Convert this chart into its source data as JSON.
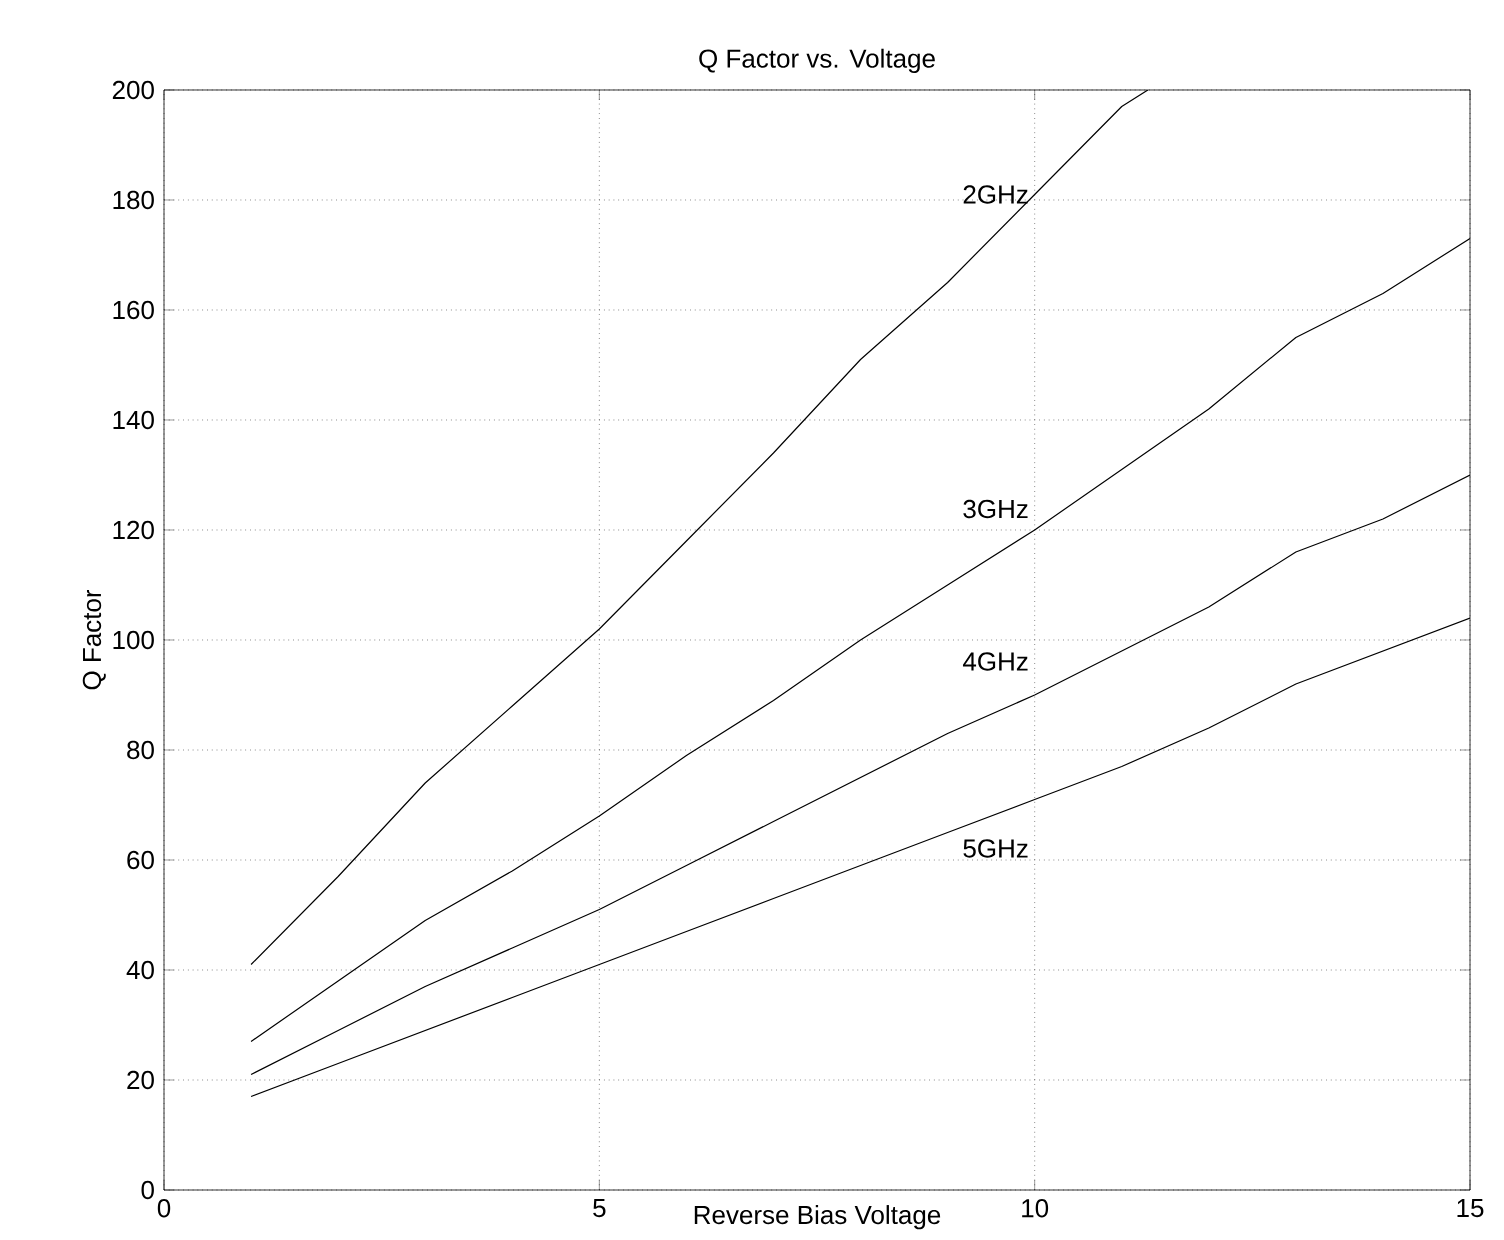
{
  "chart_data": {
    "type": "line",
    "title": "Q Factor vs. Voltage",
    "xlabel": "Reverse Bias Voltage",
    "ylabel": "Q Factor",
    "xlim": [
      0,
      15
    ],
    "xticks": [
      0,
      5,
      10,
      15
    ],
    "ylim": [
      0,
      200
    ],
    "yticks": [
      0,
      20,
      40,
      60,
      80,
      100,
      120,
      140,
      160,
      180,
      200
    ],
    "grid": true,
    "marker": "none",
    "line_style": "solid",
    "series": [
      {
        "name": "2GHz",
        "color": "#000000",
        "x": [
          1,
          2,
          3,
          4,
          5,
          6,
          7,
          8,
          9,
          10,
          11,
          11.3
        ],
        "values": [
          41,
          57,
          74,
          88,
          102,
          118,
          134,
          151,
          165,
          181,
          197,
          200
        ]
      },
      {
        "color": "#000000",
        "x": [
          1,
          2,
          3,
          4,
          5,
          6,
          7,
          8,
          9,
          10,
          11,
          12,
          13,
          14,
          15
        ],
        "name": "3GHz",
        "values": [
          27,
          38,
          49,
          58,
          68,
          79,
          89,
          100,
          110,
          120,
          131,
          142,
          155,
          163,
          173
        ]
      },
      {
        "color": "#000000",
        "x": [
          1,
          2,
          3,
          4,
          5,
          6,
          7,
          8,
          9,
          10,
          11,
          12,
          13,
          14,
          15
        ],
        "name": "4GHz",
        "values": [
          21,
          29,
          37,
          44,
          51,
          59,
          67,
          75,
          83,
          90,
          98,
          106,
          116,
          122,
          130
        ]
      },
      {
        "color": "#000000",
        "x": [
          1,
          2,
          3,
          4,
          5,
          6,
          7,
          8,
          9,
          10,
          11,
          12,
          13,
          14,
          15
        ],
        "name": "5GHz",
        "values": [
          17,
          23,
          29,
          35,
          41,
          47,
          53,
          59,
          65,
          71,
          77,
          84,
          92,
          98,
          104
        ]
      }
    ]
  }
}
